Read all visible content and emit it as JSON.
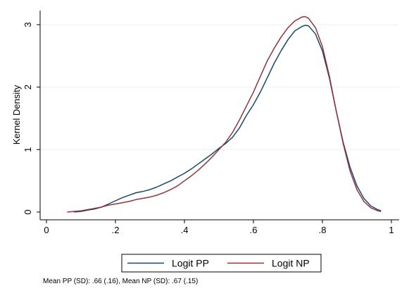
{
  "chart_data": {
    "type": "line",
    "title": "",
    "xlabel": "",
    "ylabel": "Kernel Density",
    "xlim": [
      0,
      1
    ],
    "ylim": [
      0,
      3.2
    ],
    "x_ticks": [
      0,
      0.2,
      0.4,
      0.6,
      0.8,
      1
    ],
    "x_tick_labels": [
      "0",
      ".2",
      ".4",
      ".6",
      ".8",
      "1"
    ],
    "y_ticks": [
      0,
      1,
      2,
      3
    ],
    "y_tick_labels": [
      "0",
      "1",
      "2",
      "3"
    ],
    "grid": "horizontal",
    "legend_position": "bottom",
    "series": [
      {
        "name": "Logit PP",
        "color": "#1a476f",
        "points": [
          [
            0.08,
            0.0
          ],
          [
            0.1,
            0.01
          ],
          [
            0.12,
            0.03
          ],
          [
            0.14,
            0.05
          ],
          [
            0.16,
            0.08
          ],
          [
            0.18,
            0.13
          ],
          [
            0.2,
            0.18
          ],
          [
            0.22,
            0.23
          ],
          [
            0.24,
            0.27
          ],
          [
            0.26,
            0.31
          ],
          [
            0.28,
            0.33
          ],
          [
            0.3,
            0.36
          ],
          [
            0.32,
            0.4
          ],
          [
            0.34,
            0.45
          ],
          [
            0.36,
            0.5
          ],
          [
            0.38,
            0.56
          ],
          [
            0.4,
            0.62
          ],
          [
            0.42,
            0.69
          ],
          [
            0.44,
            0.77
          ],
          [
            0.46,
            0.85
          ],
          [
            0.48,
            0.93
          ],
          [
            0.5,
            1.02
          ],
          [
            0.52,
            1.1
          ],
          [
            0.54,
            1.2
          ],
          [
            0.56,
            1.35
          ],
          [
            0.58,
            1.55
          ],
          [
            0.6,
            1.72
          ],
          [
            0.62,
            1.92
          ],
          [
            0.64,
            2.15
          ],
          [
            0.66,
            2.38
          ],
          [
            0.68,
            2.58
          ],
          [
            0.7,
            2.76
          ],
          [
            0.72,
            2.9
          ],
          [
            0.74,
            2.97
          ],
          [
            0.75,
            2.99
          ],
          [
            0.76,
            2.98
          ],
          [
            0.78,
            2.85
          ],
          [
            0.8,
            2.58
          ],
          [
            0.82,
            2.15
          ],
          [
            0.84,
            1.62
          ],
          [
            0.86,
            1.12
          ],
          [
            0.88,
            0.72
          ],
          [
            0.9,
            0.42
          ],
          [
            0.92,
            0.22
          ],
          [
            0.94,
            0.1
          ],
          [
            0.96,
            0.04
          ],
          [
            0.97,
            0.02
          ]
        ]
      },
      {
        "name": "Logit NP",
        "color": "#90353b",
        "points": [
          [
            0.06,
            0.0
          ],
          [
            0.08,
            0.01
          ],
          [
            0.1,
            0.02
          ],
          [
            0.12,
            0.04
          ],
          [
            0.14,
            0.06
          ],
          [
            0.16,
            0.08
          ],
          [
            0.18,
            0.11
          ],
          [
            0.2,
            0.13
          ],
          [
            0.22,
            0.15
          ],
          [
            0.24,
            0.17
          ],
          [
            0.26,
            0.2
          ],
          [
            0.28,
            0.22
          ],
          [
            0.3,
            0.24
          ],
          [
            0.32,
            0.27
          ],
          [
            0.34,
            0.31
          ],
          [
            0.36,
            0.36
          ],
          [
            0.38,
            0.42
          ],
          [
            0.4,
            0.5
          ],
          [
            0.42,
            0.58
          ],
          [
            0.44,
            0.67
          ],
          [
            0.46,
            0.77
          ],
          [
            0.48,
            0.88
          ],
          [
            0.5,
            1.0
          ],
          [
            0.52,
            1.12
          ],
          [
            0.54,
            1.28
          ],
          [
            0.56,
            1.48
          ],
          [
            0.58,
            1.7
          ],
          [
            0.6,
            1.92
          ],
          [
            0.62,
            2.17
          ],
          [
            0.64,
            2.42
          ],
          [
            0.66,
            2.62
          ],
          [
            0.68,
            2.8
          ],
          [
            0.7,
            2.95
          ],
          [
            0.72,
            3.06
          ],
          [
            0.74,
            3.12
          ],
          [
            0.75,
            3.13
          ],
          [
            0.76,
            3.1
          ],
          [
            0.78,
            2.95
          ],
          [
            0.8,
            2.65
          ],
          [
            0.82,
            2.18
          ],
          [
            0.84,
            1.62
          ],
          [
            0.86,
            1.1
          ],
          [
            0.88,
            0.66
          ],
          [
            0.9,
            0.36
          ],
          [
            0.92,
            0.17
          ],
          [
            0.94,
            0.07
          ],
          [
            0.96,
            0.02
          ],
          [
            0.97,
            0.01
          ]
        ]
      }
    ],
    "note": "Mean PP (SD): .66 (.16),  Mean NP (SD): .67 (.15)"
  }
}
